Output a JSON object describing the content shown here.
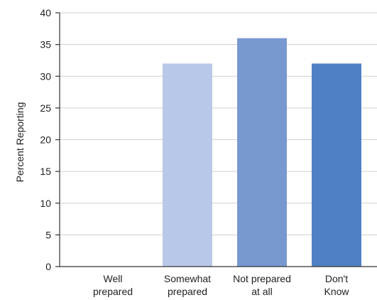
{
  "chart_data": {
    "type": "bar",
    "title": "",
    "xlabel": "",
    "ylabel": "Percent Reporting",
    "ylim": [
      0,
      40
    ],
    "yticks": [
      0,
      5,
      10,
      15,
      20,
      25,
      30,
      35,
      40
    ],
    "grid": true,
    "categories": [
      [
        "Well",
        "prepared"
      ],
      [
        "Somewhat",
        "prepared"
      ],
      [
        "Not prepared",
        "at all"
      ],
      [
        "Don't",
        "Know"
      ]
    ],
    "values": [
      0,
      32,
      36,
      32
    ],
    "colors": [
      "#b8c8e8",
      "#b8c8e8",
      "#7898d0",
      "#5080c4"
    ]
  }
}
